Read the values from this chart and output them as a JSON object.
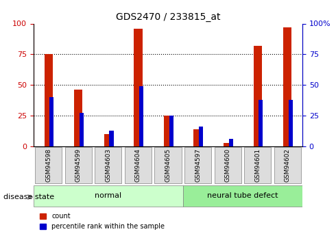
{
  "title": "GDS2470 / 233815_at",
  "samples": [
    "GSM94598",
    "GSM94599",
    "GSM94603",
    "GSM94604",
    "GSM94605",
    "GSM94597",
    "GSM94600",
    "GSM94601",
    "GSM94602"
  ],
  "count_values": [
    75,
    46,
    10,
    96,
    25,
    14,
    3,
    82,
    97
  ],
  "percentile_values": [
    40,
    27,
    13,
    49,
    25,
    16,
    6,
    38,
    38
  ],
  "normal_group": [
    0,
    1,
    2,
    3,
    4
  ],
  "defect_group": [
    5,
    6,
    7,
    8
  ],
  "normal_label": "normal",
  "defect_label": "neural tube defect",
  "disease_state_label": "disease state",
  "legend_count": "count",
  "legend_pct": "percentile rank within the sample",
  "ylim": [
    0,
    100
  ],
  "left_axis_color": "#cc0000",
  "right_axis_color": "#0000cc",
  "bar_red": "#cc2200",
  "bar_blue": "#0000cc",
  "normal_bg": "#ccffcc",
  "defect_bg": "#99ee99",
  "tick_label_bg": "#dddddd",
  "dotted_line_color": "#555555",
  "yticks": [
    0,
    25,
    50,
    75,
    100
  ]
}
